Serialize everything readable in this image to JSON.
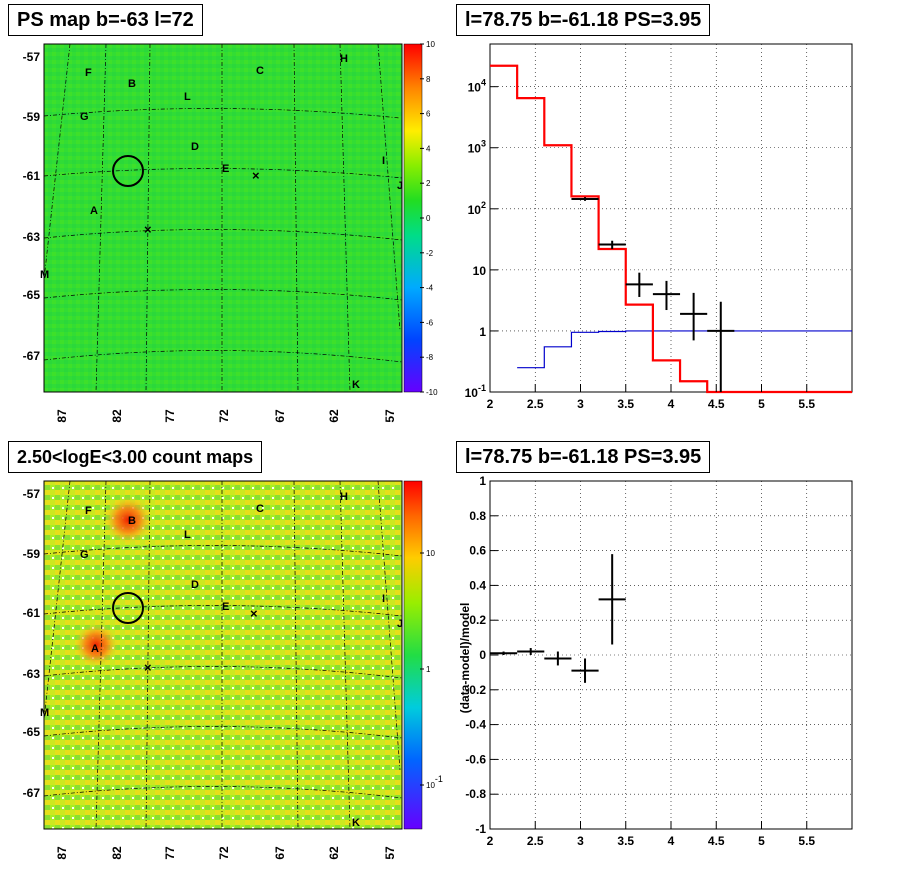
{
  "titles": {
    "ps_map": "PS map b=-63 l=72",
    "spectrum": "l=78.75 b=-61.18 PS=3.95",
    "count_map": "2.50<logE<3.00 count maps",
    "residual": "l=78.75 b=-61.18 PS=3.95"
  },
  "colors": {
    "model_line": "#ff0000",
    "bkg_line": "#0000cc",
    "data_points": "#000000"
  },
  "chart_data": [
    {
      "type": "heatmap",
      "id": "ps_map",
      "title": "PS map b=-63 l=72",
      "colorbar": {
        "range": [
          -10,
          10
        ],
        "ticks": [
          "10",
          "8",
          "6",
          "4",
          "2",
          "0",
          "-2",
          "-4",
          "-6",
          "-8",
          "-10"
        ]
      },
      "y_ticks": [
        "-57",
        "-59",
        "-61",
        "-63",
        "-65",
        "-67"
      ],
      "x_ticks": [
        "87",
        "82",
        "77",
        "72",
        "67",
        "62",
        "57"
      ],
      "sources": [
        "F",
        "B",
        "C",
        "H",
        "L",
        "G",
        "D",
        "E",
        "I",
        "J",
        "A",
        "M",
        "K"
      ]
    },
    {
      "type": "line",
      "id": "spectrum",
      "title": "l=78.75 b=-61.18 PS=3.95",
      "xlim": [
        2.0,
        6.0
      ],
      "ylim": [
        0.1,
        50000
      ],
      "log_y": true,
      "x_ticks": [
        "2",
        "2.5",
        "3",
        "3.5",
        "4",
        "4.5",
        "5",
        "5.5"
      ],
      "y_ticks": [
        "10^-1",
        "1",
        "10",
        "10^2",
        "10^3",
        "10^4"
      ],
      "model_steps": [
        {
          "x0": 2.0,
          "x1": 2.3,
          "y": 22000
        },
        {
          "x0": 2.3,
          "x1": 2.6,
          "y": 6500
        },
        {
          "x0": 2.6,
          "x1": 2.9,
          "y": 1100
        },
        {
          "x0": 2.9,
          "x1": 3.2,
          "y": 160
        },
        {
          "x0": 3.2,
          "x1": 3.5,
          "y": 22
        },
        {
          "x0": 3.5,
          "x1": 3.8,
          "y": 2.7
        },
        {
          "x0": 3.8,
          "x1": 4.1,
          "y": 0.33
        },
        {
          "x0": 4.1,
          "x1": 4.4,
          "y": 0.15
        },
        {
          "x0": 4.4,
          "x1": 6.0,
          "y": 0.1
        }
      ],
      "bkg_steps": [
        {
          "x0": 2.3,
          "x1": 2.6,
          "y": 0.25
        },
        {
          "x0": 2.6,
          "x1": 2.9,
          "y": 0.55
        },
        {
          "x0": 2.9,
          "x1": 3.2,
          "y": 0.95
        },
        {
          "x0": 3.2,
          "x1": 3.5,
          "y": 0.98
        },
        {
          "x0": 3.5,
          "x1": 6.0,
          "y": 1.0
        }
      ],
      "points": [
        {
          "x": 3.05,
          "y": 145,
          "xerr": 0.15,
          "ylo": 135,
          "yhi": 155
        },
        {
          "x": 3.35,
          "y": 26,
          "xerr": 0.15,
          "ylo": 22,
          "yhi": 30
        },
        {
          "x": 3.65,
          "y": 5.8,
          "xerr": 0.15,
          "ylo": 3.6,
          "yhi": 9.0
        },
        {
          "x": 3.95,
          "y": 4.0,
          "xerr": 0.15,
          "ylo": 2.2,
          "yhi": 6.6
        },
        {
          "x": 4.25,
          "y": 1.9,
          "xerr": 0.15,
          "ylo": 0.7,
          "yhi": 4.2
        },
        {
          "x": 4.55,
          "y": 1.0,
          "xerr": 0.15,
          "ylo": 0.1,
          "yhi": 3.0
        }
      ]
    },
    {
      "type": "heatmap",
      "id": "count_map",
      "title": "2.50<logE<3.00 count maps",
      "colorbar": {
        "scale": "log",
        "ticks": [
          "10",
          "1",
          "10^-1"
        ]
      },
      "y_ticks": [
        "-57",
        "-59",
        "-61",
        "-63",
        "-65",
        "-67"
      ],
      "x_ticks": [
        "87",
        "82",
        "77",
        "72",
        "67",
        "62",
        "57"
      ],
      "sources": [
        "F",
        "B",
        "C",
        "H",
        "L",
        "G",
        "D",
        "E",
        "I",
        "J",
        "A",
        "M",
        "K"
      ]
    },
    {
      "type": "scatter",
      "id": "residual",
      "title": "l=78.75 b=-61.18 PS=3.95",
      "ylabel": "(data-model)/model",
      "xlim": [
        2.0,
        6.0
      ],
      "ylim": [
        -1,
        1
      ],
      "x_ticks": [
        "2",
        "2.5",
        "3",
        "3.5",
        "4",
        "4.5",
        "5",
        "5.5"
      ],
      "y_ticks": [
        "1",
        "0.8",
        "0.6",
        "0.4",
        "0.2",
        "0",
        "-0.2",
        "-0.4",
        "-0.6",
        "-0.8",
        "-1"
      ],
      "points": [
        {
          "x": 2.15,
          "y": 0.01,
          "xerr": 0.15,
          "yerr": 0.01
        },
        {
          "x": 2.45,
          "y": 0.02,
          "xerr": 0.15,
          "yerr": 0.02
        },
        {
          "x": 2.75,
          "y": -0.02,
          "xerr": 0.15,
          "yerr": 0.04
        },
        {
          "x": 3.05,
          "y": -0.09,
          "xerr": 0.15,
          "yerr": 0.07
        },
        {
          "x": 3.35,
          "y": 0.32,
          "xerr": 0.15,
          "yerr": 0.26
        }
      ]
    }
  ]
}
